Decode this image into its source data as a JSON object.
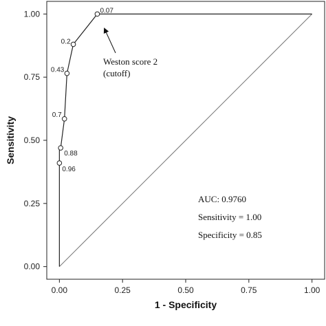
{
  "chart_data": {
    "type": "line",
    "xlabel": "1 - Specificity",
    "ylabel": "Sensitivity",
    "xlim": [
      -0.05,
      1.05
    ],
    "ylim": [
      -0.05,
      1.05
    ],
    "xticks": [
      "0.00",
      "0.25",
      "0.50",
      "0.75",
      "1.00"
    ],
    "xtick_values": [
      0,
      0.25,
      0.5,
      0.75,
      1.0
    ],
    "yticks": [
      "0.00",
      "0.25",
      "0.50",
      "0.75",
      "1.00"
    ],
    "ytick_values": [
      0,
      0.25,
      0.5,
      0.75,
      1.0
    ],
    "grid": false,
    "roc_curve": {
      "x": [
        0,
        0,
        0,
        0.005,
        0.02,
        0.03,
        0.055,
        0.15,
        1.0
      ],
      "y": [
        0,
        0.41,
        0.47,
        0.47,
        0.585,
        0.765,
        0.88,
        1.0,
        1.0
      ]
    },
    "thresholds": [
      {
        "label": "0.96",
        "x": 0,
        "y": 0.41
      },
      {
        "label": "0.88",
        "x": 0.005,
        "y": 0.47
      },
      {
        "label": "0.7",
        "x": 0.02,
        "y": 0.585
      },
      {
        "label": "0.43",
        "x": 0.03,
        "y": 0.765
      },
      {
        "label": "0.2",
        "x": 0.055,
        "y": 0.88
      },
      {
        "label": "0.07",
        "x": 0.15,
        "y": 1.0
      }
    ],
    "reference_line": {
      "x": [
        0,
        1
      ],
      "y": [
        0,
        1
      ]
    },
    "arrow_annotation": {
      "lines": [
        "Weston score 2",
        "(cutoff)"
      ],
      "points_to": {
        "x": 0.15,
        "y": 1.0
      }
    },
    "stats": [
      "AUC: 0.9760",
      "Sensitivity = 1.00",
      "Specificity = 0.85"
    ]
  }
}
